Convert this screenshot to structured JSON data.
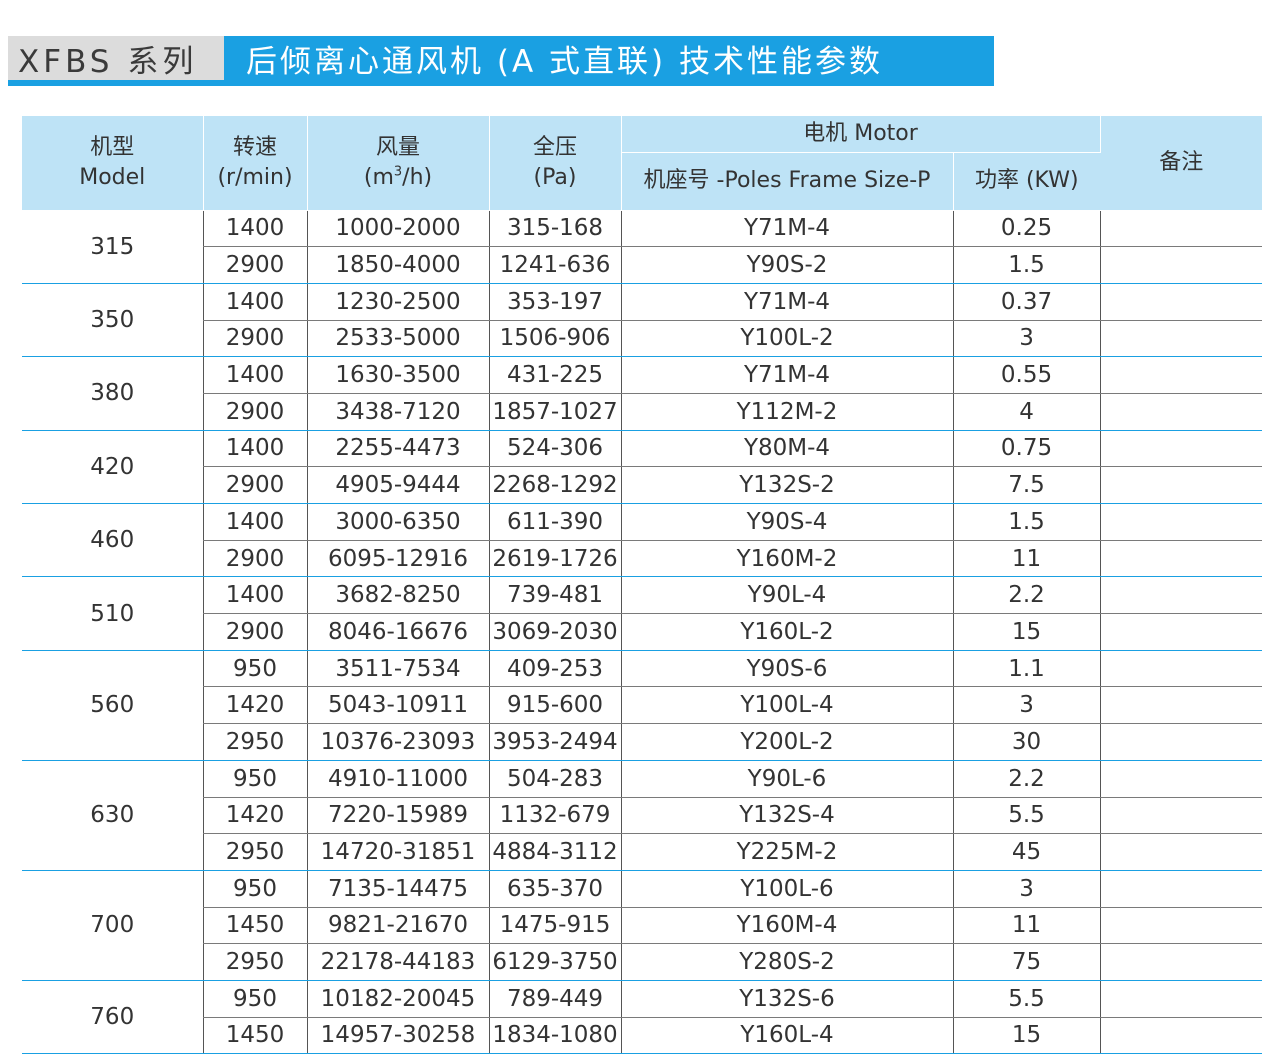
{
  "title": {
    "series": "XFBS 系列",
    "name": "后倾离心通风机 (A 式直联) 技术性能参数"
  },
  "colors": {
    "accent": "#1aa0e2",
    "header_bg": "#bee3f6",
    "series_bg": "#dcdcdc"
  },
  "headers": {
    "model_cn": "机型",
    "model_en": "Model",
    "speed_cn": "转速",
    "speed_unit": "(r/min)",
    "flow_cn": "风量",
    "flow_unit_a": "(m",
    "flow_unit_sup": "3",
    "flow_unit_b": "/h)",
    "pressure_cn": "全压",
    "pressure_unit": "(Pa)",
    "motor": "电机 Motor",
    "frame": "机座号 -Poles Frame Size-P",
    "power": "功率 (KW)",
    "remark": "备注"
  },
  "rows": [
    {
      "model": "315",
      "sub": [
        {
          "speed": "1400",
          "flow": "1000-2000",
          "pressure": "315-168",
          "frame": "Y71M-4",
          "power": "0.25",
          "remark": ""
        },
        {
          "speed": "2900",
          "flow": "1850-4000",
          "pressure": "1241-636",
          "frame": "Y90S-2",
          "power": "1.5",
          "remark": ""
        }
      ]
    },
    {
      "model": "350",
      "sub": [
        {
          "speed": "1400",
          "flow": "1230-2500",
          "pressure": "353-197",
          "frame": "Y71M-4",
          "power": "0.37",
          "remark": ""
        },
        {
          "speed": "2900",
          "flow": "2533-5000",
          "pressure": "1506-906",
          "frame": "Y100L-2",
          "power": "3",
          "remark": ""
        }
      ]
    },
    {
      "model": "380",
      "sub": [
        {
          "speed": "1400",
          "flow": "1630-3500",
          "pressure": "431-225",
          "frame": "Y71M-4",
          "power": "0.55",
          "remark": ""
        },
        {
          "speed": "2900",
          "flow": "3438-7120",
          "pressure": "1857-1027",
          "frame": "Y112M-2",
          "power": "4",
          "remark": ""
        }
      ]
    },
    {
      "model": "420",
      "sub": [
        {
          "speed": "1400",
          "flow": "2255-4473",
          "pressure": "524-306",
          "frame": "Y80M-4",
          "power": "0.75",
          "remark": ""
        },
        {
          "speed": "2900",
          "flow": "4905-9444",
          "pressure": "2268-1292",
          "frame": "Y132S-2",
          "power": "7.5",
          "remark": ""
        }
      ]
    },
    {
      "model": "460",
      "sub": [
        {
          "speed": "1400",
          "flow": "3000-6350",
          "pressure": "611-390",
          "frame": "Y90S-4",
          "power": "1.5",
          "remark": ""
        },
        {
          "speed": "2900",
          "flow": "6095-12916",
          "pressure": "2619-1726",
          "frame": "Y160M-2",
          "power": "11",
          "remark": ""
        }
      ]
    },
    {
      "model": "510",
      "sub": [
        {
          "speed": "1400",
          "flow": "3682-8250",
          "pressure": "739-481",
          "frame": "Y90L-4",
          "power": "2.2",
          "remark": ""
        },
        {
          "speed": "2900",
          "flow": "8046-16676",
          "pressure": "3069-2030",
          "frame": "Y160L-2",
          "power": "15",
          "remark": ""
        }
      ]
    },
    {
      "model": "560",
      "sub": [
        {
          "speed": "950",
          "flow": "3511-7534",
          "pressure": "409-253",
          "frame": "Y90S-6",
          "power": "1.1",
          "remark": ""
        },
        {
          "speed": "1420",
          "flow": "5043-10911",
          "pressure": "915-600",
          "frame": "Y100L-4",
          "power": "3",
          "remark": ""
        },
        {
          "speed": "2950",
          "flow": "10376-23093",
          "pressure": "3953-2494",
          "frame": "Y200L-2",
          "power": "30",
          "remark": ""
        }
      ]
    },
    {
      "model": "630",
      "sub": [
        {
          "speed": "950",
          "flow": "4910-11000",
          "pressure": "504-283",
          "frame": "Y90L-6",
          "power": "2.2",
          "remark": ""
        },
        {
          "speed": "1420",
          "flow": "7220-15989",
          "pressure": "1132-679",
          "frame": "Y132S-4",
          "power": "5.5",
          "remark": ""
        },
        {
          "speed": "2950",
          "flow": "14720-31851",
          "pressure": "4884-3112",
          "frame": "Y225M-2",
          "power": "45",
          "remark": ""
        }
      ]
    },
    {
      "model": "700",
      "sub": [
        {
          "speed": "950",
          "flow": "7135-14475",
          "pressure": "635-370",
          "frame": "Y100L-6",
          "power": "3",
          "remark": ""
        },
        {
          "speed": "1450",
          "flow": "9821-21670",
          "pressure": "1475-915",
          "frame": "Y160M-4",
          "power": "11",
          "remark": ""
        },
        {
          "speed": "2950",
          "flow": "22178-44183",
          "pressure": "6129-3750",
          "frame": "Y280S-2",
          "power": "75",
          "remark": ""
        }
      ]
    },
    {
      "model": "760",
      "sub": [
        {
          "speed": "950",
          "flow": "10182-20045",
          "pressure": "789-449",
          "frame": "Y132S-6",
          "power": "5.5",
          "remark": ""
        },
        {
          "speed": "1450",
          "flow": "14957-30258",
          "pressure": "1834-1080",
          "frame": "Y160L-4",
          "power": "15",
          "remark": ""
        }
      ]
    }
  ]
}
